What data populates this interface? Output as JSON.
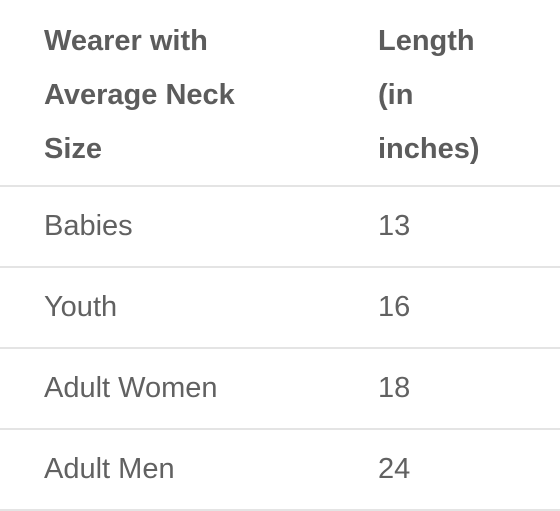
{
  "table": {
    "headers": [
      {
        "lines": [
          "Wearer with",
          "Average Neck",
          "Size"
        ]
      },
      {
        "lines": [
          "Length",
          "(in",
          "inches)"
        ]
      }
    ],
    "rows": [
      {
        "wearer": "Babies",
        "length": "13"
      },
      {
        "wearer": "Youth",
        "length": "16"
      },
      {
        "wearer": "Adult Women",
        "length": "18"
      },
      {
        "wearer": "Adult Men",
        "length": "24"
      }
    ]
  }
}
